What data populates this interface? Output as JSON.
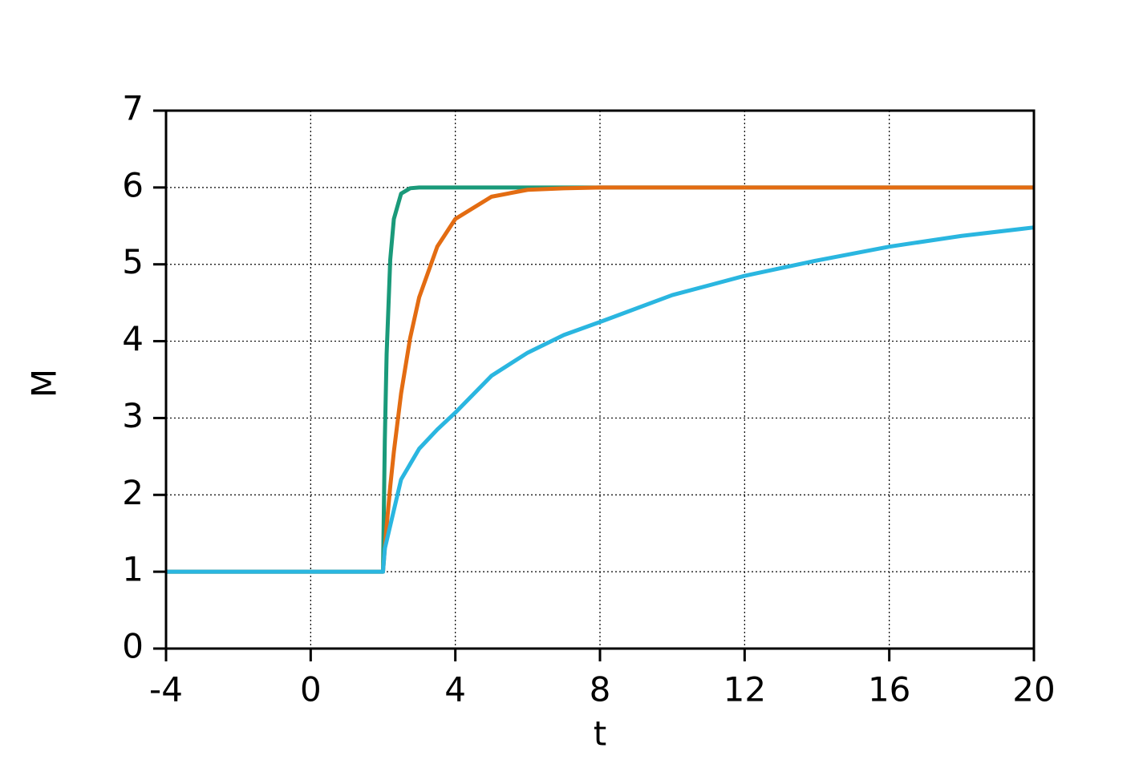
{
  "chart_data": {
    "type": "line",
    "x_label": "t",
    "y_label": "M",
    "x": [
      -4,
      0,
      2,
      2.05,
      2.1,
      2.2,
      2.3,
      2.5,
      2.75,
      3,
      3.5,
      4,
      5,
      6,
      7,
      8,
      10,
      12,
      14,
      16,
      18,
      20
    ],
    "series": [
      {
        "color": "#1a9a7a",
        "values": [
          1,
          1,
          1,
          2.71,
          3.83,
          5.06,
          5.59,
          5.92,
          5.99,
          6,
          6,
          6,
          6,
          6,
          6,
          6,
          6,
          6,
          6,
          6,
          6,
          6
        ]
      },
      {
        "color": "#e36c12",
        "values": [
          1,
          1,
          1,
          1.3,
          1.59,
          2.11,
          2.56,
          3.32,
          4.04,
          4.57,
          5.23,
          5.59,
          5.88,
          5.97,
          5.99,
          6,
          6,
          6,
          6,
          6,
          6,
          6
        ]
      },
      {
        "color": "#2ab6e0",
        "values": [
          1,
          1,
          1,
          1.3,
          1.4,
          1.6,
          1.8,
          2.2,
          2.4,
          2.6,
          2.85,
          3.07,
          3.55,
          3.85,
          4.08,
          4.25,
          4.6,
          4.85,
          5.05,
          5.23,
          5.37,
          5.48
        ]
      }
    ],
    "xlim": [
      -4,
      20
    ],
    "xticks": [
      -4,
      0,
      4,
      8,
      12,
      16,
      20
    ],
    "ylim": [
      0,
      7
    ],
    "yticks": [
      0,
      1,
      2,
      3,
      4,
      5,
      6,
      7
    ],
    "grid": true
  }
}
